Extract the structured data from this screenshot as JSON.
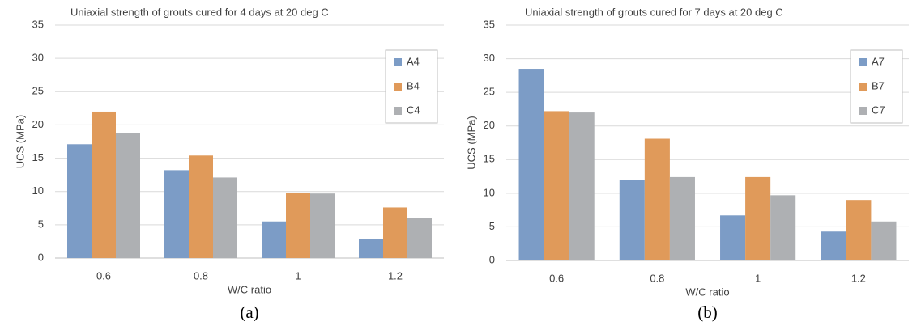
{
  "chart_data": [
    {
      "type": "bar",
      "title": "Uniaxial strength of grouts cured for 4 days at 20 deg C",
      "x_label": "W/C ratio",
      "y_label": "UCS (MPa)",
      "caption": "(a)",
      "categories": [
        "0.6",
        "0.8",
        "1",
        "1.2"
      ],
      "series": [
        {
          "name": "A4",
          "color": "#7c9cc6",
          "values": [
            17.1,
            13.2,
            5.5,
            2.8
          ]
        },
        {
          "name": "B4",
          "color": "#e09a5a",
          "values": [
            22.0,
            15.4,
            9.8,
            7.6
          ]
        },
        {
          "name": "C4",
          "color": "#aeb0b3",
          "values": [
            18.8,
            12.1,
            9.7,
            6.0
          ]
        }
      ],
      "ylim": [
        0,
        35
      ],
      "yticks": [
        0,
        5,
        10,
        15,
        20,
        25,
        30,
        35
      ],
      "grid": true,
      "legend": "top-right"
    },
    {
      "type": "bar",
      "title": "Uniaxial strength of grouts cured for 7 days at 20 deg C",
      "x_label": "W/C ratio",
      "y_label": "UCS (MPa)",
      "caption": "(b)",
      "categories": [
        "0.6",
        "0.8",
        "1",
        "1.2"
      ],
      "series": [
        {
          "name": "A7",
          "color": "#7c9cc6",
          "values": [
            28.5,
            12.0,
            6.7,
            4.3
          ]
        },
        {
          "name": "B7",
          "color": "#e09a5a",
          "values": [
            22.2,
            18.1,
            12.4,
            9.0
          ]
        },
        {
          "name": "C7",
          "color": "#aeb0b3",
          "values": [
            22.0,
            12.4,
            9.7,
            5.8
          ]
        }
      ],
      "ylim": [
        0,
        35
      ],
      "yticks": [
        0,
        5,
        10,
        15,
        20,
        25,
        30,
        35
      ],
      "grid": true,
      "legend": "top-right"
    }
  ]
}
